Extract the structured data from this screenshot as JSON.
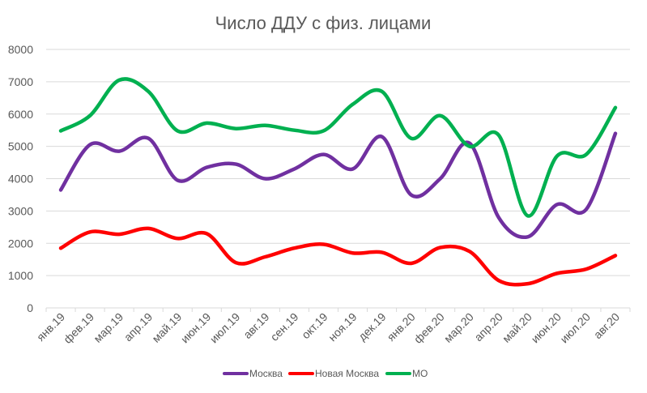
{
  "chart_data": {
    "type": "line",
    "title": "Число ДДУ с физ. лицами",
    "xlabel": "",
    "ylabel": "",
    "ylim": [
      0,
      8000
    ],
    "yticks": [
      "0",
      "1000",
      "2000",
      "3000",
      "4000",
      "5000",
      "6000",
      "7000",
      "8000"
    ],
    "categories": [
      "янв.19",
      "фев.19",
      "мар.19",
      "апр.19",
      "май.19",
      "июн.19",
      "июл.19",
      "авг.19",
      "сен.19",
      "окт.19",
      "ноя.19",
      "дек.19",
      "янв.20",
      "фев.20",
      "мар.20",
      "апр.20",
      "май.20",
      "июн.20",
      "июл.20",
      "авг.20"
    ],
    "grid": true,
    "legend_position": "bottom",
    "smooth": true,
    "series": [
      {
        "name": "Москва",
        "color": "#7030a0",
        "values": [
          3650,
          5050,
          4850,
          5250,
          3950,
          4350,
          4450,
          4000,
          4300,
          4750,
          4300,
          5300,
          3500,
          4000,
          5100,
          2800,
          2200,
          3200,
          3050,
          5400
        ]
      },
      {
        "name": "Новая Москва",
        "color": "#ff0000",
        "values": [
          1850,
          2350,
          2280,
          2460,
          2150,
          2300,
          1400,
          1580,
          1850,
          1970,
          1700,
          1720,
          1380,
          1870,
          1750,
          850,
          750,
          1070,
          1200,
          1620
        ]
      },
      {
        "name": "МО",
        "color": "#00b050",
        "values": [
          5480,
          5950,
          7050,
          6700,
          5480,
          5720,
          5550,
          5650,
          5500,
          5480,
          6300,
          6700,
          5250,
          5950,
          5000,
          5350,
          2850,
          4700,
          4750,
          6200
        ]
      }
    ]
  }
}
